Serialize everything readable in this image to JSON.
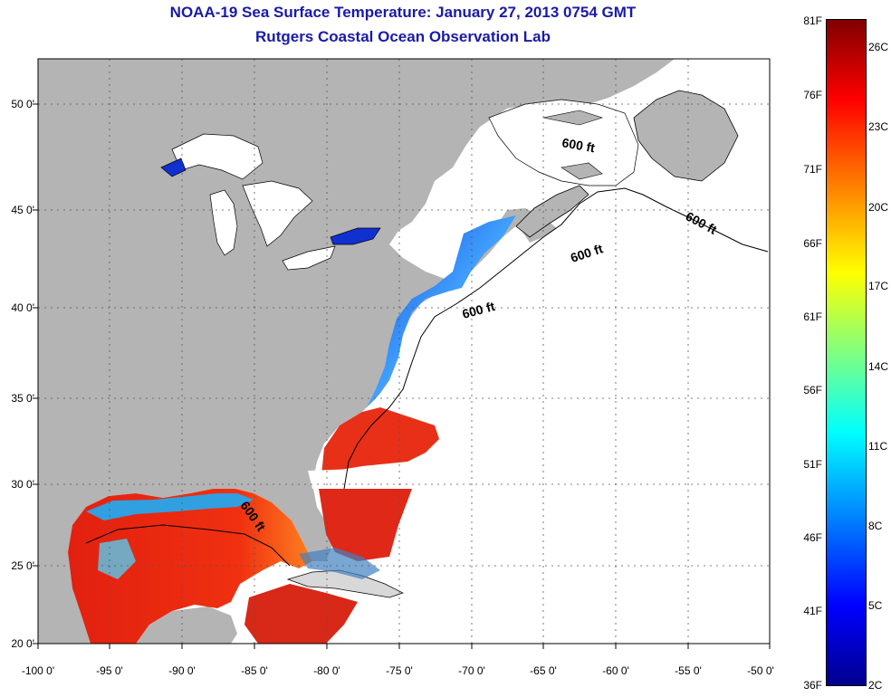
{
  "title_line1": "NOAA-19 Sea Surface Temperature:  January 27, 2013 0754 GMT",
  "title_line2": "Rutgers Coastal Ocean Observation Lab",
  "lat_ticks": [
    "50 0'",
    "45 0'",
    "40 0'",
    "35 0'",
    "30 0'",
    "25 0'",
    "20 0'"
  ],
  "lon_ticks": [
    "-100 0'",
    "-95 0'",
    "-90 0'",
    "-85 0'",
    "-80 0'",
    "-75 0'",
    "-70 0'",
    "-65 0'",
    "-60 0'",
    "-55 0'",
    "-50 0'"
  ],
  "contour_labels": [
    "600 ft",
    "600 ft",
    "600 ft",
    "600 ft",
    "600 ft"
  ],
  "colorbar": {
    "fahrenheit": [
      "81F",
      "76F",
      "71F",
      "66F",
      "61F",
      "56F",
      "51F",
      "46F",
      "41F",
      "36F"
    ],
    "celsius": [
      "26C",
      "23C",
      "20C",
      "17C",
      "14C",
      "11C",
      "8C",
      "5C",
      "2C"
    ]
  },
  "colors": {
    "land": "#b4b4b4",
    "ocean_nodata": "#ffffff",
    "title": "#1a1aa8"
  }
}
